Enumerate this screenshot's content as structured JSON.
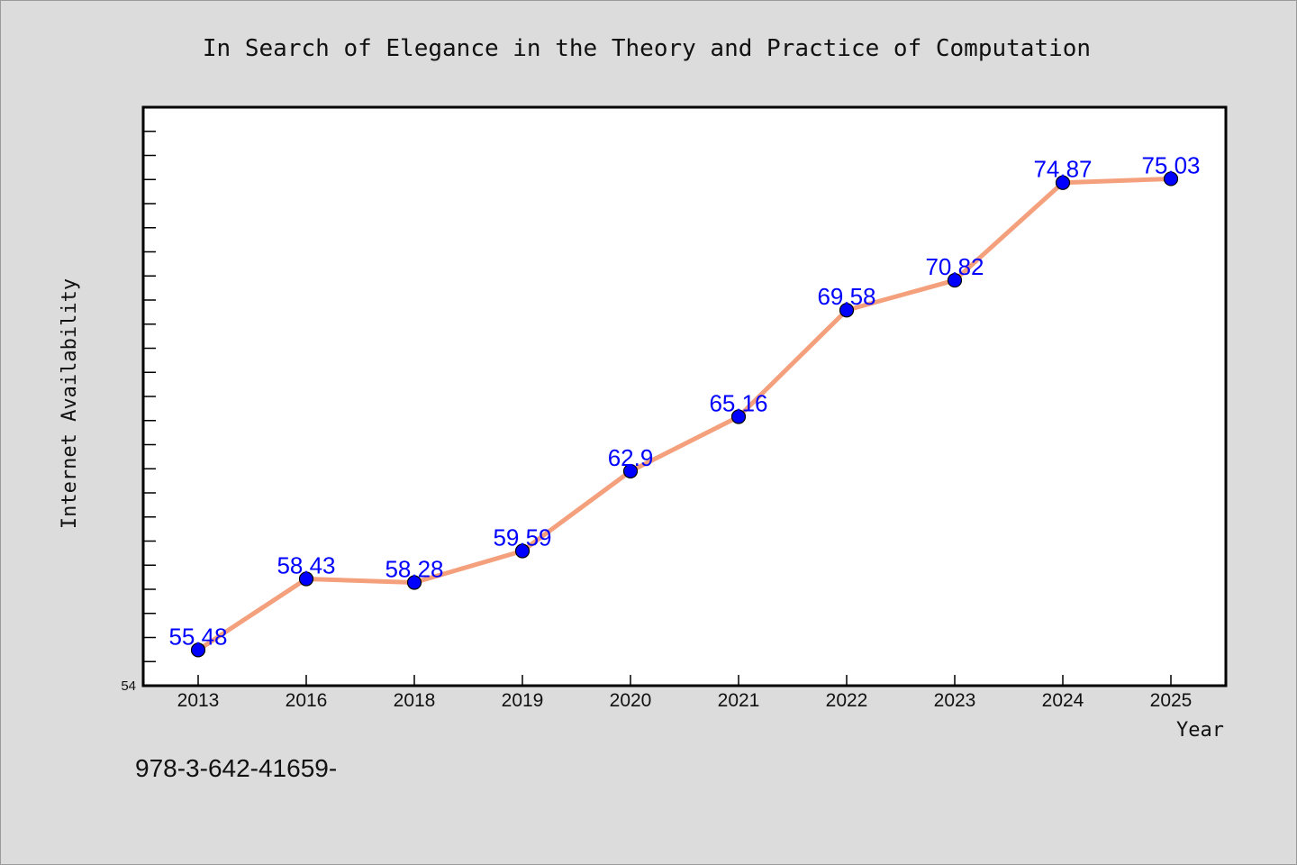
{
  "chart_data": {
    "type": "line",
    "title": "In Search of Elegance in the Theory and Practice of Computation",
    "xlabel": "Year",
    "ylabel": "Internet Availability",
    "categories": [
      "2013",
      "2016",
      "2018",
      "2019",
      "2020",
      "2021",
      "2022",
      "2023",
      "2024",
      "2025"
    ],
    "values": [
      55.48,
      58.43,
      58.28,
      59.59,
      62.9,
      65.16,
      69.58,
      70.82,
      74.87,
      75.03
    ],
    "data_labels": [
      "55.48",
      "58.43",
      "58.28",
      "59.59",
      "62.9",
      "65.16",
      "69.58",
      "70.82",
      "74.87",
      "75.03"
    ],
    "ylim": [
      54,
      78
    ],
    "y_tick_label": "54",
    "grid": false,
    "legend": "none",
    "line_color": "#f4a07c",
    "marker_color": "#0000ff",
    "label_color": "#0000ff"
  },
  "footer": {
    "text": "978-3-642-41659-"
  }
}
